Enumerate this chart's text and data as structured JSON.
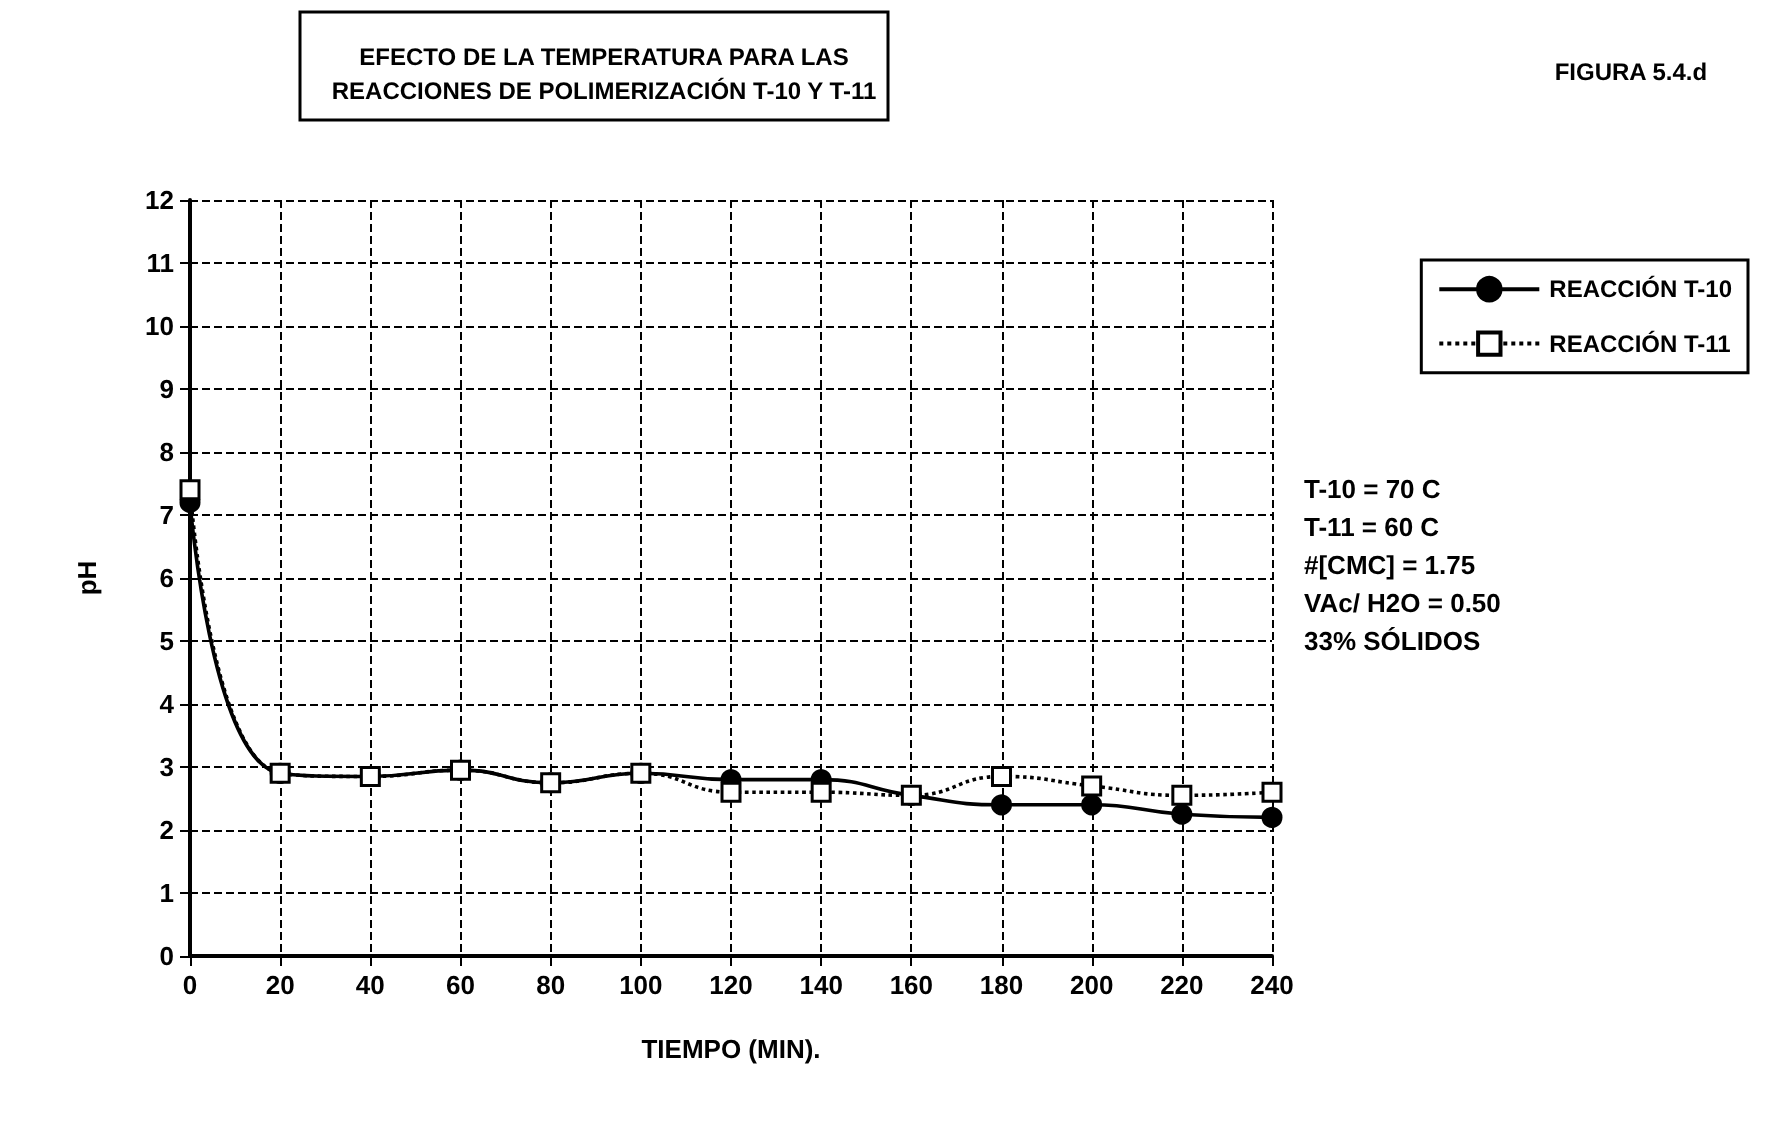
{
  "chart_data": {
    "type": "line",
    "title": "EFECTO DE LA TEMPERATURA PARA LAS\nREACCIONES DE POLIMERIZACIÓN T-10 Y T-11",
    "xlabel": "TIEMPO (MIN).",
    "ylabel": "pH",
    "x": [
      0,
      20,
      40,
      60,
      80,
      100,
      120,
      140,
      160,
      180,
      200,
      220,
      240
    ],
    "series": [
      {
        "name": "REACCIÓN T-10",
        "color": "#000000",
        "marker": "circle",
        "line_style": "solid",
        "values": [
          7.2,
          2.9,
          2.85,
          2.95,
          2.75,
          2.9,
          2.8,
          2.8,
          2.55,
          2.4,
          2.4,
          2.25,
          2.2
        ]
      },
      {
        "name": "REACCIÓN T-11",
        "color": "#000000",
        "marker": "square",
        "line_style": "dotted",
        "values": [
          7.4,
          2.9,
          2.85,
          2.95,
          2.75,
          2.9,
          2.6,
          2.6,
          2.55,
          2.85,
          2.7,
          2.55,
          2.6
        ]
      }
    ],
    "xlim": [
      0,
      240
    ],
    "xticks": [
      0,
      20,
      40,
      60,
      80,
      100,
      120,
      140,
      160,
      180,
      200,
      220,
      240
    ],
    "ylim": [
      0,
      12
    ],
    "yticks": [
      0,
      1,
      2,
      3,
      4,
      5,
      6,
      7,
      8,
      9,
      10,
      11,
      12
    ],
    "grid": true,
    "legend": "right",
    "annotations": [
      "FIGURA 5.4.d",
      "T-10 = 70 C\nT-11 = 60 C\n#[CMC] = 1.75\nVAc/ H2O = 0.50\n33% SÓLIDOS"
    ]
  }
}
